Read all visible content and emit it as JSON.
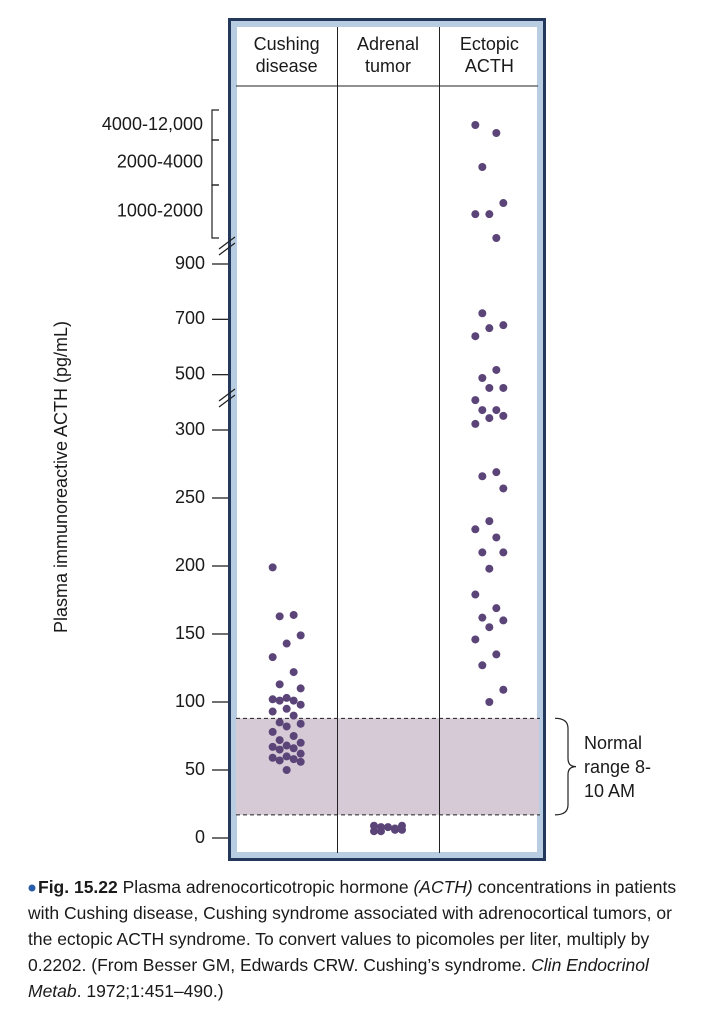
{
  "chart_data": {
    "type": "scatter",
    "y_label": "Plasma immunoreactive ACTH (pg/mL)",
    "categories": [
      "Cushing disease",
      "Adrenal tumor",
      "Ectopic ACTH"
    ],
    "ylim": [
      0,
      12000
    ],
    "yticks": [
      0,
      50,
      100,
      150,
      200,
      250,
      300,
      500,
      700,
      900
    ],
    "axis_breaks": [
      300,
      900
    ],
    "y_ranges": [
      {
        "low": 1000,
        "high": 2000,
        "label": "1000-2000"
      },
      {
        "low": 2000,
        "high": 4000,
        "label": "2000-4000"
      },
      {
        "low": 4000,
        "high": 12000,
        "label": "4000-12,000"
      }
    ],
    "normal_range": {
      "low": 17,
      "high": 88,
      "label": "Normal range 8-10 AM"
    },
    "band_color": "#d6cad6",
    "series": [
      {
        "color": "#5b4478",
        "values": [
          199,
          164,
          163,
          149,
          143,
          133,
          122,
          113,
          110,
          103,
          102,
          101,
          101,
          98,
          95,
          93,
          90,
          85,
          84,
          82,
          78,
          75,
          72,
          70,
          68,
          67,
          66,
          65,
          62,
          60,
          59,
          58,
          57,
          56,
          50
        ]
      },
      {
        "color": "#5b4478",
        "values": [
          5,
          6,
          8,
          9,
          8,
          9,
          7,
          5,
          6
        ]
      },
      {
        "color": "#5b4478",
        "values": [
          7200,
          4640,
          2650,
          1660,
          1450,
          1450,
          1000,
          722,
          679,
          668,
          639,
          517,
          488,
          452,
          452,
          408,
          372,
          372,
          351,
          343,
          322,
          269,
          266,
          257,
          233,
          227,
          221,
          210,
          210,
          198,
          179,
          169,
          162,
          160,
          155,
          146,
          135,
          127,
          109,
          100
        ]
      }
    ]
  },
  "caption": {
    "label": "Fig. 15.22",
    "runs": [
      {
        "text": " Plasma adrenocorticotropic hormone ",
        "italic": false
      },
      {
        "text": "(ACTH)",
        "italic": true
      },
      {
        "text": " concentrations in patients with Cushing disease, Cushing syndrome associated with adrenocortical tumors, or the ectopic ACTH syndrome. To convert values to picomoles per liter, multiply by 0.2202. (From Besser GM, Edwards CRW. Cushing’s syndrome. ",
        "italic": false
      },
      {
        "text": "Clin Endocrinol Metab",
        "italic": true
      },
      {
        "text": ". 1972;1:451–490.)",
        "italic": false
      }
    ]
  }
}
